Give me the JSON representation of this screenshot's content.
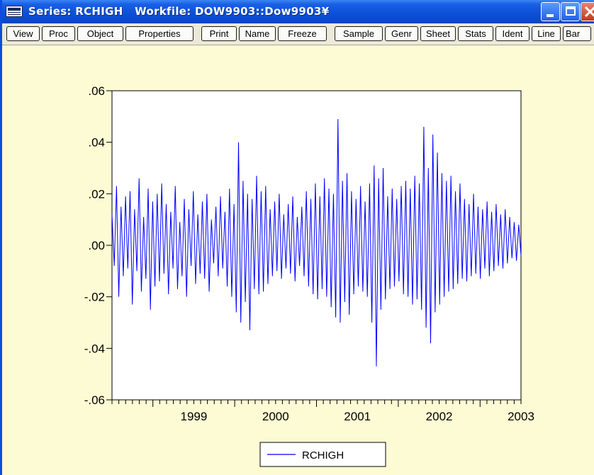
{
  "window": {
    "title": "Series: RCHIGH   Workfile: DOW9903::Dow9903¥",
    "accent_color": "#0a4ee0",
    "background_color": "#fdfbd3"
  },
  "title_buttons": [
    "minimize-icon",
    "maximize-icon",
    "close-icon"
  ],
  "toolbar": {
    "buttons": [
      "View",
      "Proc",
      "Object",
      "Properties",
      "Print",
      "Name",
      "Freeze",
      "Sample",
      "Genr",
      "Sheet",
      "Stats",
      "Ident",
      "Line",
      "Bar"
    ]
  },
  "chart_data": {
    "type": "line",
    "title": "",
    "xlabel": "",
    "ylabel": "",
    "x_range": [
      1998.5,
      2003.5
    ],
    "ylim": [
      -0.06,
      0.06
    ],
    "y_ticks": [
      ".06",
      ".04",
      ".02",
      ".00",
      "-.02",
      "-.04",
      "-.06"
    ],
    "y_tick_values": [
      0.06,
      0.04,
      0.02,
      0.0,
      -0.02,
      -0.04,
      -0.06
    ],
    "x_tick_labels": [
      "1999",
      "2000",
      "2001",
      "2002",
      "2003"
    ],
    "grid": false,
    "legend_position": "bottom-center",
    "series": [
      {
        "name": "RCHIGH",
        "color": "#0000ff",
        "values": [
          0.012,
          -0.008,
          0.023,
          -0.02,
          0.015,
          -0.012,
          0.019,
          -0.009,
          0.021,
          -0.023,
          0.014,
          -0.01,
          0.026,
          -0.018,
          0.011,
          -0.013,
          0.022,
          -0.025,
          0.017,
          -0.016,
          0.02,
          -0.014,
          0.024,
          -0.011,
          0.016,
          -0.019,
          0.013,
          -0.009,
          0.023,
          -0.017,
          0.009,
          -0.012,
          0.018,
          -0.02,
          0.014,
          -0.008,
          0.021,
          -0.015,
          0.012,
          -0.011,
          0.017,
          -0.013,
          0.02,
          -0.018,
          0.01,
          -0.007,
          0.015,
          -0.012,
          0.019,
          -0.009,
          0.013,
          -0.016,
          0.022,
          -0.02,
          0.016,
          -0.026,
          0.04,
          -0.03,
          0.025,
          -0.022,
          0.02,
          -0.033,
          0.018,
          -0.017,
          0.027,
          -0.019,
          0.021,
          -0.018,
          0.023,
          -0.015,
          0.014,
          -0.012,
          0.017,
          -0.01,
          0.02,
          -0.013,
          0.012,
          -0.009,
          0.016,
          -0.011,
          0.019,
          -0.014,
          0.011,
          -0.008,
          0.015,
          -0.012,
          0.021,
          -0.016,
          0.018,
          -0.019,
          0.024,
          -0.021,
          0.019,
          -0.017,
          0.026,
          -0.02,
          0.022,
          -0.024,
          0.02,
          -0.028,
          0.049,
          -0.03,
          0.025,
          -0.022,
          0.028,
          -0.027,
          0.021,
          -0.019,
          0.018,
          -0.016,
          0.023,
          -0.018,
          0.017,
          -0.02,
          0.024,
          -0.03,
          0.031,
          -0.047,
          0.026,
          -0.025,
          0.03,
          -0.021,
          0.019,
          -0.017,
          0.022,
          -0.016,
          0.018,
          -0.014,
          0.023,
          -0.019,
          0.025,
          -0.02,
          0.022,
          -0.023,
          0.027,
          -0.021,
          0.024,
          -0.025,
          0.046,
          -0.032,
          0.03,
          -0.038,
          0.043,
          -0.026,
          0.036,
          -0.023,
          0.028,
          -0.02,
          0.025,
          -0.018,
          0.027,
          -0.017,
          0.021,
          -0.015,
          0.024,
          -0.013,
          0.018,
          -0.014,
          0.016,
          -0.012,
          0.02,
          -0.011,
          0.015,
          -0.013,
          0.014,
          -0.009,
          0.017,
          -0.012,
          0.013,
          -0.01,
          0.016,
          -0.008,
          0.012,
          -0.009,
          0.014,
          -0.007,
          0.011,
          -0.005,
          0.009,
          -0.006,
          0.008,
          -0.004
        ]
      }
    ]
  }
}
